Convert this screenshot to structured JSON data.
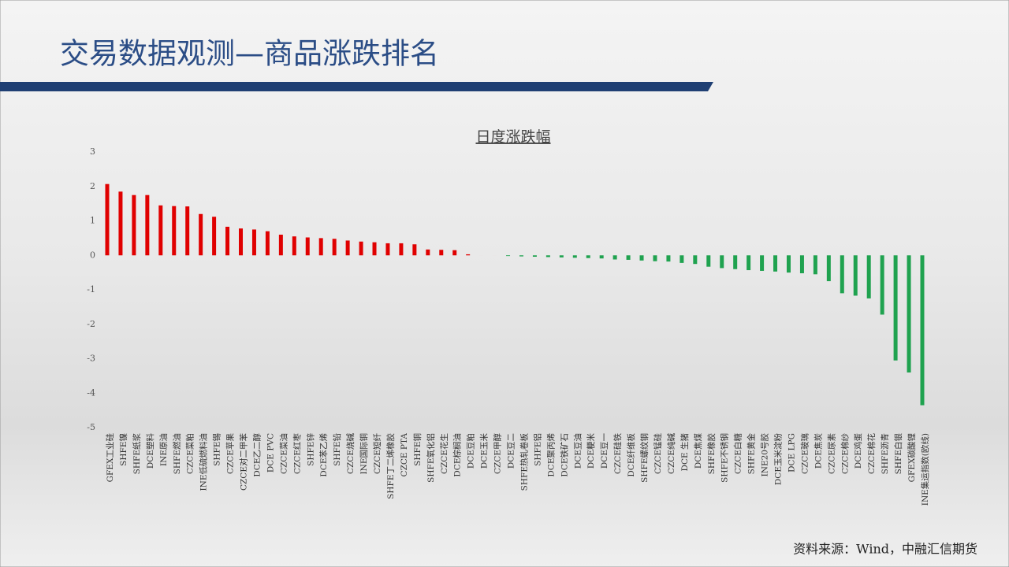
{
  "header": {
    "title": "交易数据观测—商品涨跌排名"
  },
  "chart_data": {
    "type": "bar",
    "title": "日度涨跌幅",
    "categories": [
      "GFEX工业硅",
      "SHFE镍",
      "SHFE纸浆",
      "DCE塑料",
      "INE原油",
      "SHFE燃油",
      "CZCE菜粕",
      "INE低硫燃料油",
      "SHFE锡",
      "CZCE苹果",
      "CZCE对二甲苯",
      "DCE乙二醇",
      "DCE PVC",
      "CZCE菜油",
      "CZCE红枣",
      "SHFE锌",
      "DCE苯乙烯",
      "SHFE铅",
      "CZCE烧碱",
      "INE国际铜",
      "CZCE短纤",
      "SHFE丁二烯橡胶",
      "CZCE PTA",
      "SHFE铜",
      "SHFE氧化铝",
      "CZCE花生",
      "DCE棕榈油",
      "DCE豆粕",
      "DCE玉米",
      "CZCE甲醇",
      "DCE豆二",
      "SHFE热轧卷板",
      "SHFE铝",
      "DCE聚丙烯",
      "DCE铁矿石",
      "DCE豆油",
      "DCE粳米",
      "DCE豆一",
      "CZCE硅铁",
      "DCE纤维板",
      "SHFE螺纹钢",
      "CZCE锰硅",
      "CZCE纯碱",
      "DCE 生猪",
      "DCE焦煤",
      "SHFE橡胶",
      "SHFE不锈钢",
      "CZCE白糖",
      "SHFE黄金",
      "INE20号胶",
      "DCE玉米淀粉",
      "DCE LPG",
      "CZCE玻璃",
      "DCE焦炭",
      "CZCE尿素",
      "CZCE棉纱",
      "DCE鸡蛋",
      "CZCE棉花",
      "SHFE沥青",
      "SHFE白银",
      "GFEX碳酸锂",
      "INE集运指数(欧线)"
    ],
    "values": [
      2.07,
      1.85,
      1.75,
      1.75,
      1.45,
      1.43,
      1.42,
      1.2,
      1.12,
      0.83,
      0.78,
      0.75,
      0.7,
      0.6,
      0.55,
      0.52,
      0.5,
      0.48,
      0.43,
      0.4,
      0.38,
      0.35,
      0.35,
      0.32,
      0.17,
      0.16,
      0.15,
      0.03,
      0.0,
      0.0,
      -0.02,
      -0.03,
      -0.04,
      -0.05,
      -0.06,
      -0.07,
      -0.08,
      -0.09,
      -0.12,
      -0.13,
      -0.15,
      -0.17,
      -0.18,
      -0.22,
      -0.25,
      -0.33,
      -0.37,
      -0.4,
      -0.43,
      -0.45,
      -0.47,
      -0.5,
      -0.52,
      -0.55,
      -0.75,
      -1.1,
      -1.17,
      -1.25,
      -1.72,
      -3.05,
      -3.4,
      -4.35
    ],
    "positive_color": "#e00000",
    "negative_color": "#1fa24f",
    "ylim": [
      -5,
      3
    ],
    "yticks": [
      3,
      2,
      1,
      0,
      -1,
      -2,
      -3,
      -4,
      -5
    ],
    "grid": false
  },
  "footer": {
    "source": "资料来源：Wind，中融汇信期货"
  }
}
